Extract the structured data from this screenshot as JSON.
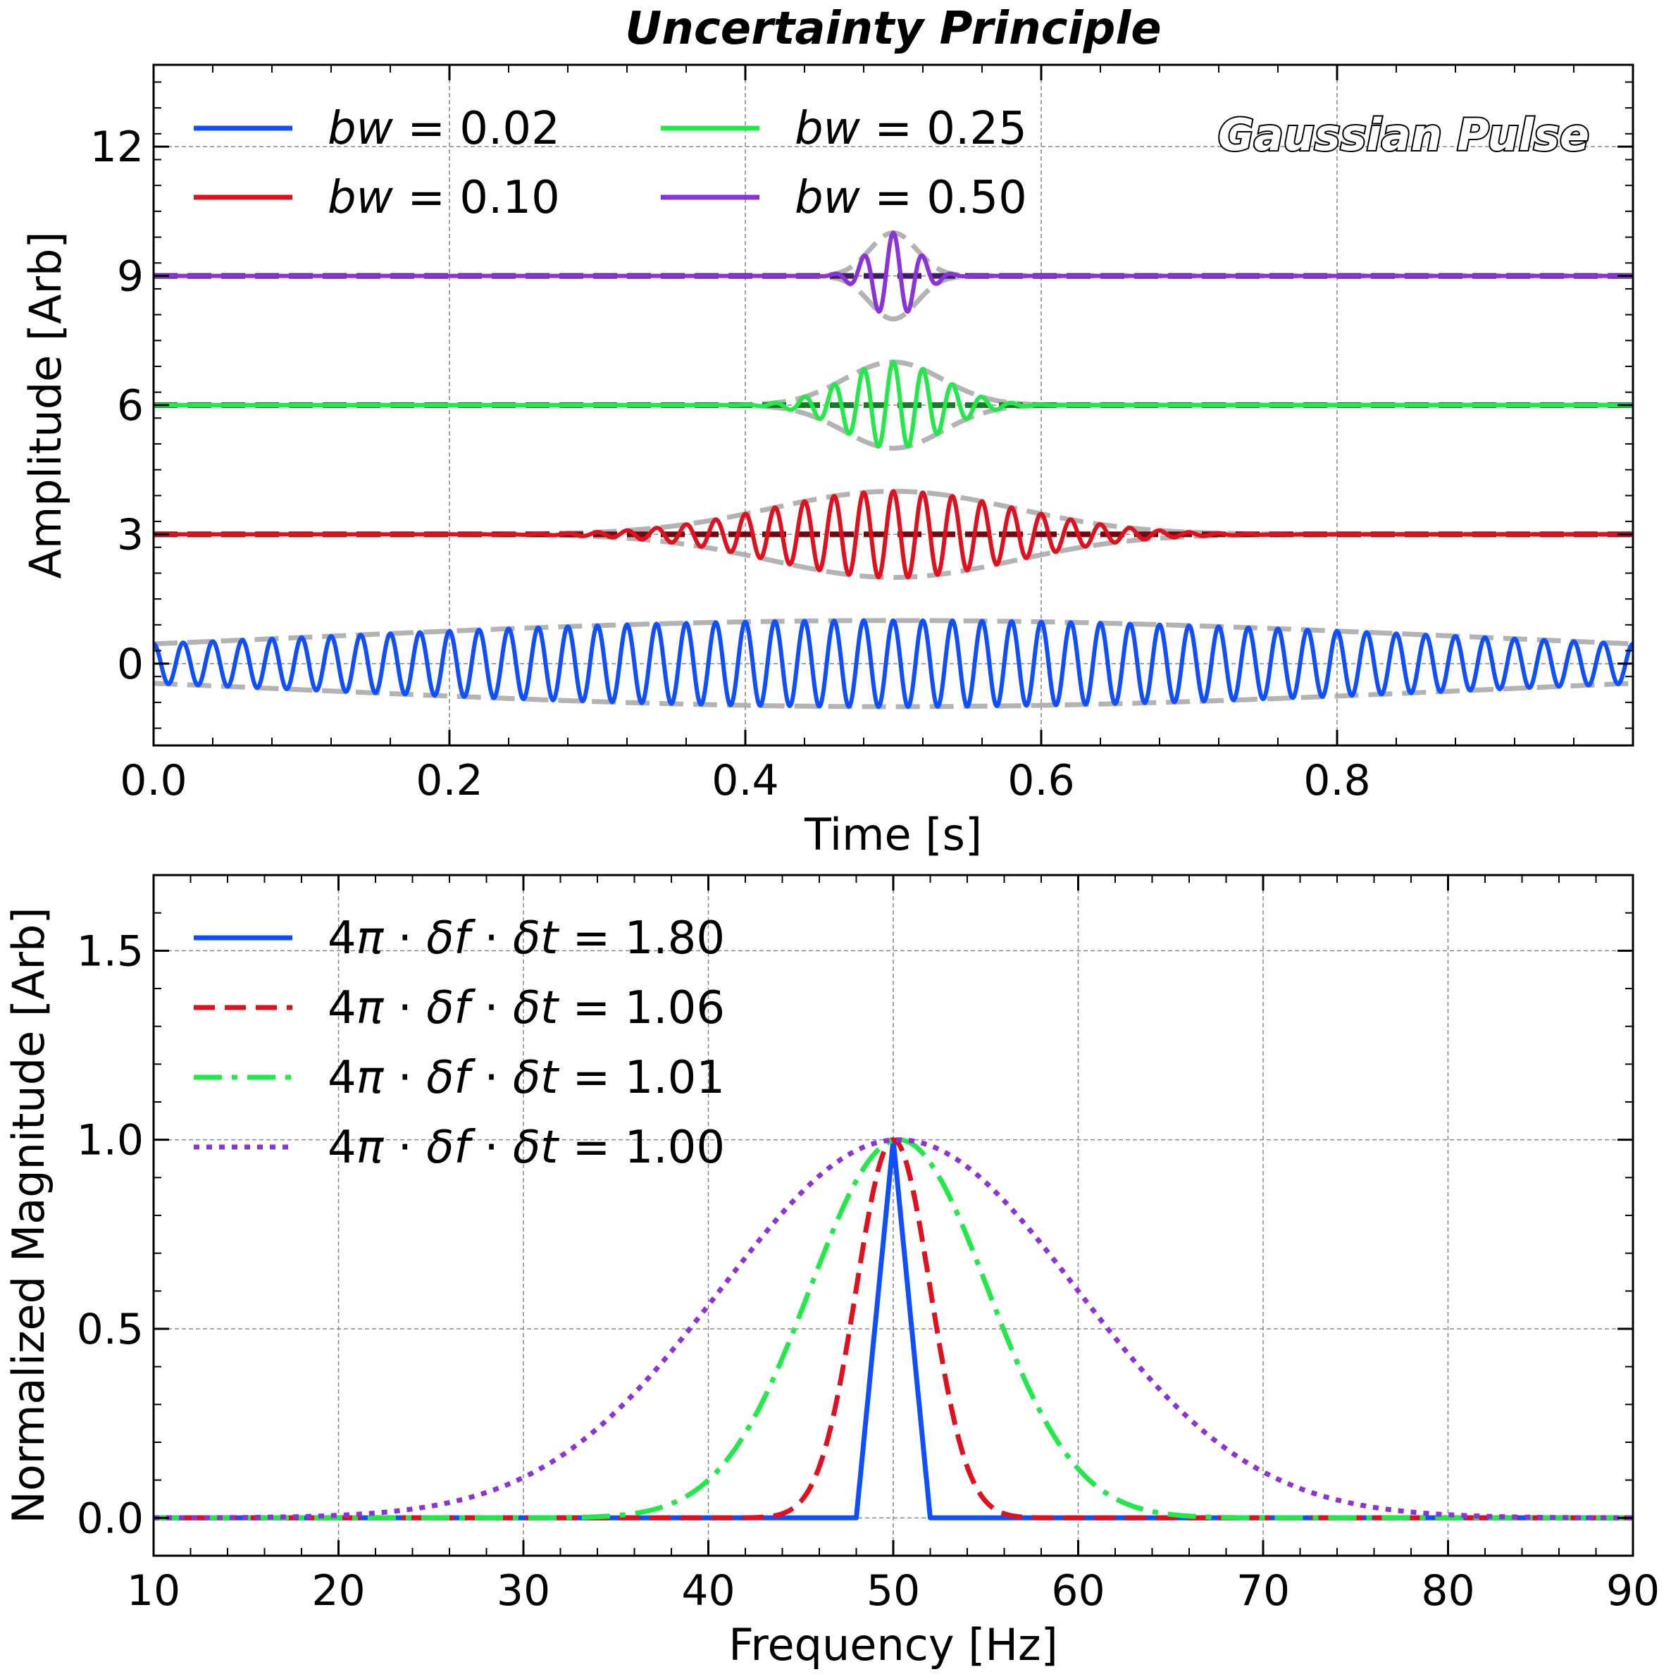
{
  "chart_data": [
    {
      "type": "line",
      "title": "Uncertainty Principle",
      "xlabel": "Time [s]",
      "ylabel": "Amplitude [Arb]",
      "xlim": [
        0.0,
        1.0
      ],
      "ylim": [
        -1.9,
        13.9
      ],
      "xticks": [
        0.0,
        0.2,
        0.4,
        0.6,
        0.8
      ],
      "xtick_labels": [
        "0.0",
        "0.2",
        "0.4",
        "0.6",
        "0.8"
      ],
      "yticks": [
        0,
        3,
        6,
        9,
        12
      ],
      "ytick_labels": [
        "0",
        "3",
        "6",
        "9",
        "12"
      ],
      "grid": true,
      "legend_position": "top-left",
      "annotation": "Gaussian Pulse",
      "carrier_frequency_hz": 50,
      "pulse_center_s": 0.5,
      "envelope_style": "grey dashed",
      "series": [
        {
          "name": "bw = 0.02",
          "legend_prefix": "bw",
          "legend_value": "= 0.02",
          "color": "#0f4fff",
          "offset": 0,
          "envelope_sigma_s": 0.4
        },
        {
          "name": "bw = 0.10",
          "legend_prefix": "bw",
          "legend_value": "= 0.10",
          "color": "#e0101f",
          "offset": 3,
          "envelope_sigma_s": 0.082,
          "baseline_color": "#6b0a10"
        },
        {
          "name": "bw = 0.25",
          "legend_prefix": "bw",
          "legend_value": "= 0.25",
          "color": "#22e84a",
          "offset": 6,
          "envelope_sigma_s": 0.033,
          "baseline_color": "#1a7a2a"
        },
        {
          "name": "bw = 0.50",
          "legend_prefix": "bw",
          "legend_value": "= 0.50",
          "color": "#8a33d6",
          "offset": 9,
          "envelope_sigma_s": 0.016,
          "baseline_color": "#3f1d63"
        }
      ]
    },
    {
      "type": "line",
      "xlabel": "Frequency [Hz]",
      "ylabel": "Normalized Magnitude [Arb]",
      "xlim": [
        10,
        90
      ],
      "ylim": [
        -0.1,
        1.7
      ],
      "xticks": [
        10,
        20,
        30,
        40,
        50,
        60,
        70,
        80,
        90
      ],
      "xtick_labels": [
        "10",
        "20",
        "30",
        "40",
        "50",
        "60",
        "70",
        "80",
        "90"
      ],
      "yticks": [
        0.0,
        0.5,
        1.0,
        1.5
      ],
      "ytick_labels": [
        "0.0",
        "0.5",
        "1.0",
        "1.5"
      ],
      "grid": true,
      "legend_position": "top-left",
      "series": [
        {
          "name": "4π · δf · δt = 1.80",
          "legend_value": "= 1.80",
          "color": "#0f4fff",
          "dash": "solid",
          "shape": "triangle",
          "center_hz": 50,
          "half_width_hz": 2.0
        },
        {
          "name": "4π · δf · δt = 1.06",
          "legend_value": "= 1.06",
          "color": "#e0101f",
          "dash": "dashed",
          "shape": "gaussian",
          "center_hz": 50,
          "sigma_hz": 2.0
        },
        {
          "name": "4π · δf · δt = 1.01",
          "legend_value": "= 1.01",
          "color": "#22e84a",
          "dash": "dashdot",
          "shape": "gaussian",
          "center_hz": 50.3,
          "sigma_hz": 4.8
        },
        {
          "name": "4π · δf · δt = 1.00",
          "legend_value": "= 1.00",
          "color": "#8a33d6",
          "dash": "dotted",
          "shape": "gaussian",
          "center_hz": 50.3,
          "sigma_hz": 9.6
        }
      ]
    }
  ]
}
